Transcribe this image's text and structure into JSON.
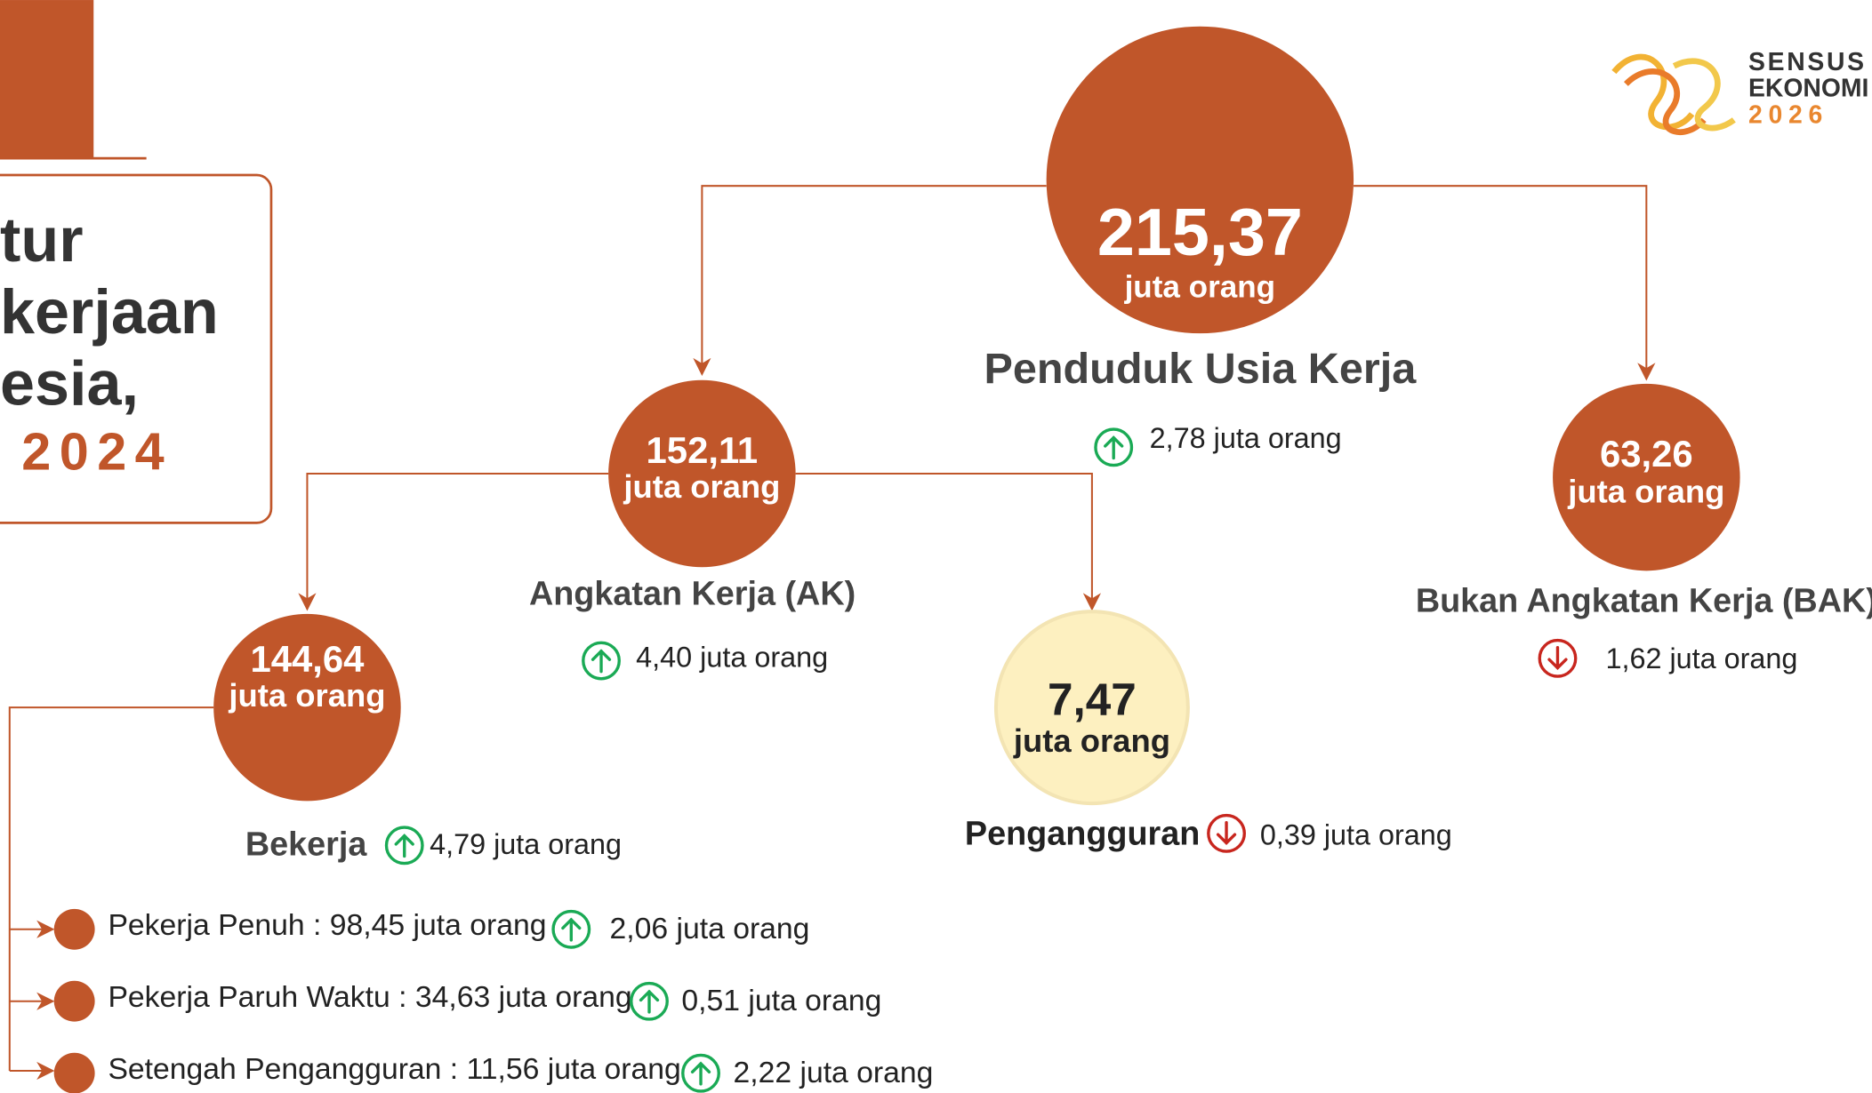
{
  "title": {
    "lines": [
      "tur",
      "kerjaan",
      "esia,"
    ],
    "year": "2024"
  },
  "logo": [
    "SENSUS",
    "EKONOMI",
    "2026"
  ],
  "nodes": [
    {
      "value": "215,37",
      "unit": "juta orang",
      "label": "Penduduk Usia Kerja",
      "change": "2,78 juta orang",
      "trend": "up"
    },
    {
      "value": "152,11",
      "unit": "juta orang",
      "label": "Angkatan Kerja (AK)",
      "change": "4,40 juta orang",
      "trend": "up"
    },
    {
      "value": "63,26",
      "unit": "juta orang",
      "label": "Bukan Angkatan Kerja (BAK)",
      "change": "1,62 juta orang",
      "trend": "down"
    },
    {
      "value": "144,64",
      "unit": "juta orang",
      "label": "Bekerja",
      "change": "4,79 juta orang",
      "trend": "up"
    },
    {
      "value": "7,47",
      "unit": "juta orang",
      "label": "Pengangguran",
      "change": "0,39 juta orang",
      "trend": "down"
    }
  ],
  "breakdown": [
    {
      "label": "Pekerja Penuh : 98,45 juta orang",
      "change": "2,06  juta orang",
      "trend": "up"
    },
    {
      "label": "Pekerja Paruh Waktu : 34,63 juta orang",
      "change": "0,51 juta orang",
      "trend": "up"
    },
    {
      "label": "Setengah Pengangguran : 11,56 juta orang",
      "change": "2,22 juta orang",
      "trend": "up"
    }
  ]
}
